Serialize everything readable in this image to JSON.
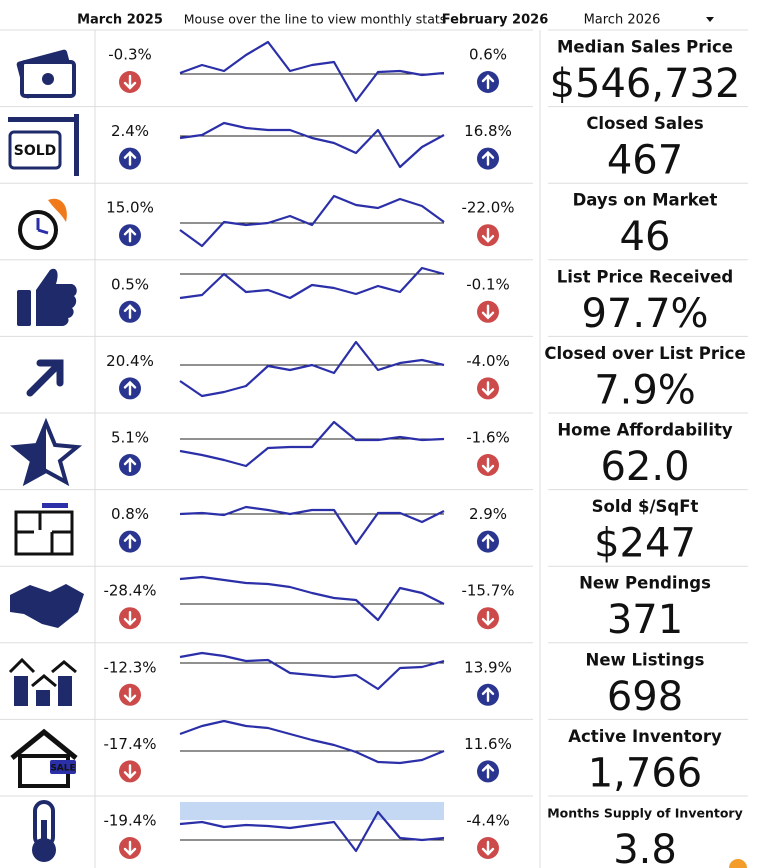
{
  "header": {
    "col_prev": "March 2025",
    "hint": "Mouse over the line to view monthly stats",
    "col_last": "February 2026",
    "col_current": "March 2026"
  },
  "icons": {
    "sold_sign": "SOLD",
    "sale_sign": "SALE"
  },
  "rows": [
    {
      "label": "Median Sales Price",
      "value": "$546,732",
      "prev": "-0.3%",
      "last": "0.6%"
    },
    {
      "label": "Closed Sales",
      "value": "467",
      "prev": "2.4%",
      "last": "16.8%"
    },
    {
      "label": "Days on Market",
      "value": "46",
      "prev": "15.0%",
      "last": "-22.0%"
    },
    {
      "label": "List Price Received",
      "value": "97.7%",
      "prev": "0.5%",
      "last": "-0.1%"
    },
    {
      "label": "Closed over List Price",
      "value": "7.9%",
      "prev": "20.4%",
      "last": "-4.0%"
    },
    {
      "label": "Home Affordability",
      "value": "62.0",
      "prev": "5.1%",
      "last": "-1.6%"
    },
    {
      "label": "Sold $/SqFt",
      "value": "$247",
      "prev": "0.8%",
      "last": "2.9%"
    },
    {
      "label": "New Pendings",
      "value": "371",
      "prev": "-28.4%",
      "last": "-15.7%"
    },
    {
      "label": "New Listings",
      "value": "698",
      "prev": "-12.3%",
      "last": "13.9%"
    },
    {
      "label": "Active Inventory",
      "value": "1,766",
      "prev": "-17.4%",
      "last": "11.6%"
    },
    {
      "label": "Months Supply of Inventory",
      "value": "3.8",
      "prev": "-19.4%",
      "last": "-4.4%"
    }
  ]
}
